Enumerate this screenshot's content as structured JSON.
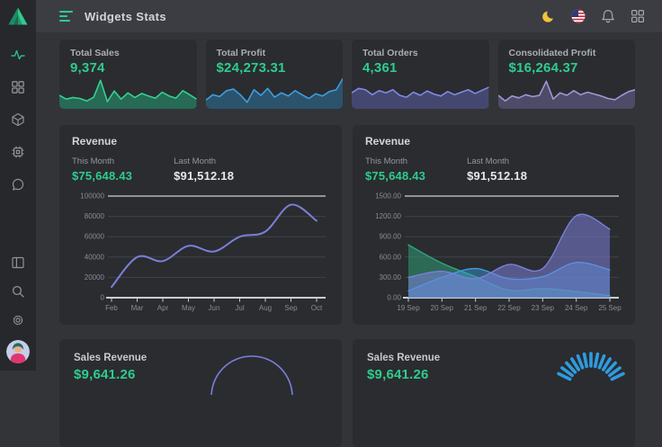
{
  "header": {
    "title": "Widgets Stats",
    "icons": [
      "dark-mode-moon",
      "us-flag",
      "notifications-bell",
      "apps-grid"
    ]
  },
  "sidebar": {
    "icons": [
      "logo",
      "activity",
      "dashboard-grid",
      "products-cube",
      "system-chip",
      "messages-chat",
      "layout-panel",
      "search",
      "settings",
      "user-avatar"
    ],
    "active": "activity"
  },
  "colors": {
    "accent_green": "#2ecc8e",
    "header_bg": "#3b3d42",
    "page_bg": "#323438",
    "card_bg": "#2a2c30",
    "sidebar_bg": "#26282c",
    "chart_purple": "#7b7fd8",
    "chart_blue": "#3e9de0",
    "chart_green": "#2da87c"
  },
  "stat_cards": [
    {
      "label": "Total Sales",
      "value": "9,374",
      "chart_data": {
        "type": "area-sparkline",
        "color": "#35d08f",
        "fill": "#23a879",
        "values": [
          40,
          28,
          33,
          30,
          22,
          34,
          88,
          20,
          54,
          28,
          48,
          33,
          46,
          38,
          31,
          50,
          38,
          31,
          55,
          42,
          28
        ]
      }
    },
    {
      "label": "Total Profit",
      "value": "$24,273.31",
      "chart_data": {
        "type": "area-sparkline",
        "color": "#3e9de0",
        "fill": "#2e7aa8",
        "values": [
          25,
          42,
          36,
          55,
          60,
          42,
          18,
          58,
          40,
          62,
          34,
          48,
          38,
          55,
          42,
          30,
          45,
          38,
          52,
          58,
          95
        ]
      }
    },
    {
      "label": "Total Orders",
      "value": "4,361",
      "chart_data": {
        "type": "area-sparkline",
        "color": "#8288e4",
        "fill": "#5d63b0",
        "values": [
          48,
          62,
          58,
          42,
          55,
          48,
          58,
          40,
          34,
          50,
          40,
          54,
          44,
          38,
          52,
          42,
          50,
          58,
          46,
          56,
          66
        ]
      }
    },
    {
      "label": "Consolidated Profit",
      "value": "$16,264.37",
      "chart_data": {
        "type": "area-sparkline",
        "color": "#9d97d4",
        "fill": "#6f6a9e",
        "values": [
          40,
          22,
          38,
          32,
          42,
          36,
          40,
          85,
          28,
          48,
          40,
          55,
          42,
          50,
          44,
          38,
          30,
          26,
          40,
          52,
          58
        ]
      }
    }
  ],
  "revenue_left": {
    "title": "Revenue",
    "this_month_label": "This Month",
    "this_month_value": "$75,648.43",
    "last_month_label": "Last Month",
    "last_month_value": "$91,512.18",
    "chart_data": {
      "type": "line",
      "x": [
        "Feb",
        "Mar",
        "Apr",
        "May",
        "Jun",
        "Jul",
        "Aug",
        "Sep",
        "Oct"
      ],
      "yticks": [
        "0",
        "20000",
        "40000",
        "60000",
        "80000",
        "100000"
      ],
      "ylim": [
        0,
        100000
      ],
      "grid": "horizontal",
      "series": [
        {
          "name": "Revenue",
          "color": "#7b7fd8",
          "values": [
            10500,
            40000,
            36000,
            51000,
            45500,
            60000,
            65000,
            91512,
            75648
          ]
        }
      ]
    }
  },
  "revenue_right": {
    "title": "Revenue",
    "this_month_label": "This Month",
    "this_month_value": "$75,648.43",
    "last_month_label": "Last Month",
    "last_month_value": "$91,512.18",
    "chart_data": {
      "type": "area",
      "x": [
        "19 Sep",
        "20 Sep",
        "21 Sep",
        "22 Sep",
        "23 Sep",
        "24 Sep",
        "25 Sep"
      ],
      "yticks": [
        "0.00",
        "300.00",
        "600.00",
        "900.00",
        "1200.00",
        "1500.00"
      ],
      "ylim": [
        0,
        1500
      ],
      "grid": "horizontal",
      "series": [
        {
          "name": "series-green",
          "color": "#2da87c",
          "fill": "rgba(45,168,124,0.50)",
          "values": [
            780,
            510,
            310,
            110,
            135,
            90,
            30
          ]
        },
        {
          "name": "series-blue",
          "color": "#3e9de0",
          "fill": "rgba(62,157,224,0.45)",
          "values": [
            100,
            300,
            430,
            280,
            310,
            520,
            410
          ]
        },
        {
          "name": "series-purple",
          "color": "#7b7fd8",
          "fill": "rgba(123,127,216,0.55)",
          "values": [
            300,
            390,
            280,
            490,
            430,
            1210,
            1010
          ]
        }
      ]
    }
  },
  "sales_left": {
    "title": "Sales Revenue",
    "value": "$9,641.26",
    "chart_data": {
      "type": "gauge-arc",
      "color": "#7b7fd8"
    }
  },
  "sales_right": {
    "title": "Sales Revenue",
    "value": "$9,641.26",
    "chart_data": {
      "type": "gauge-ticks",
      "color": "#2e9ce0"
    }
  }
}
